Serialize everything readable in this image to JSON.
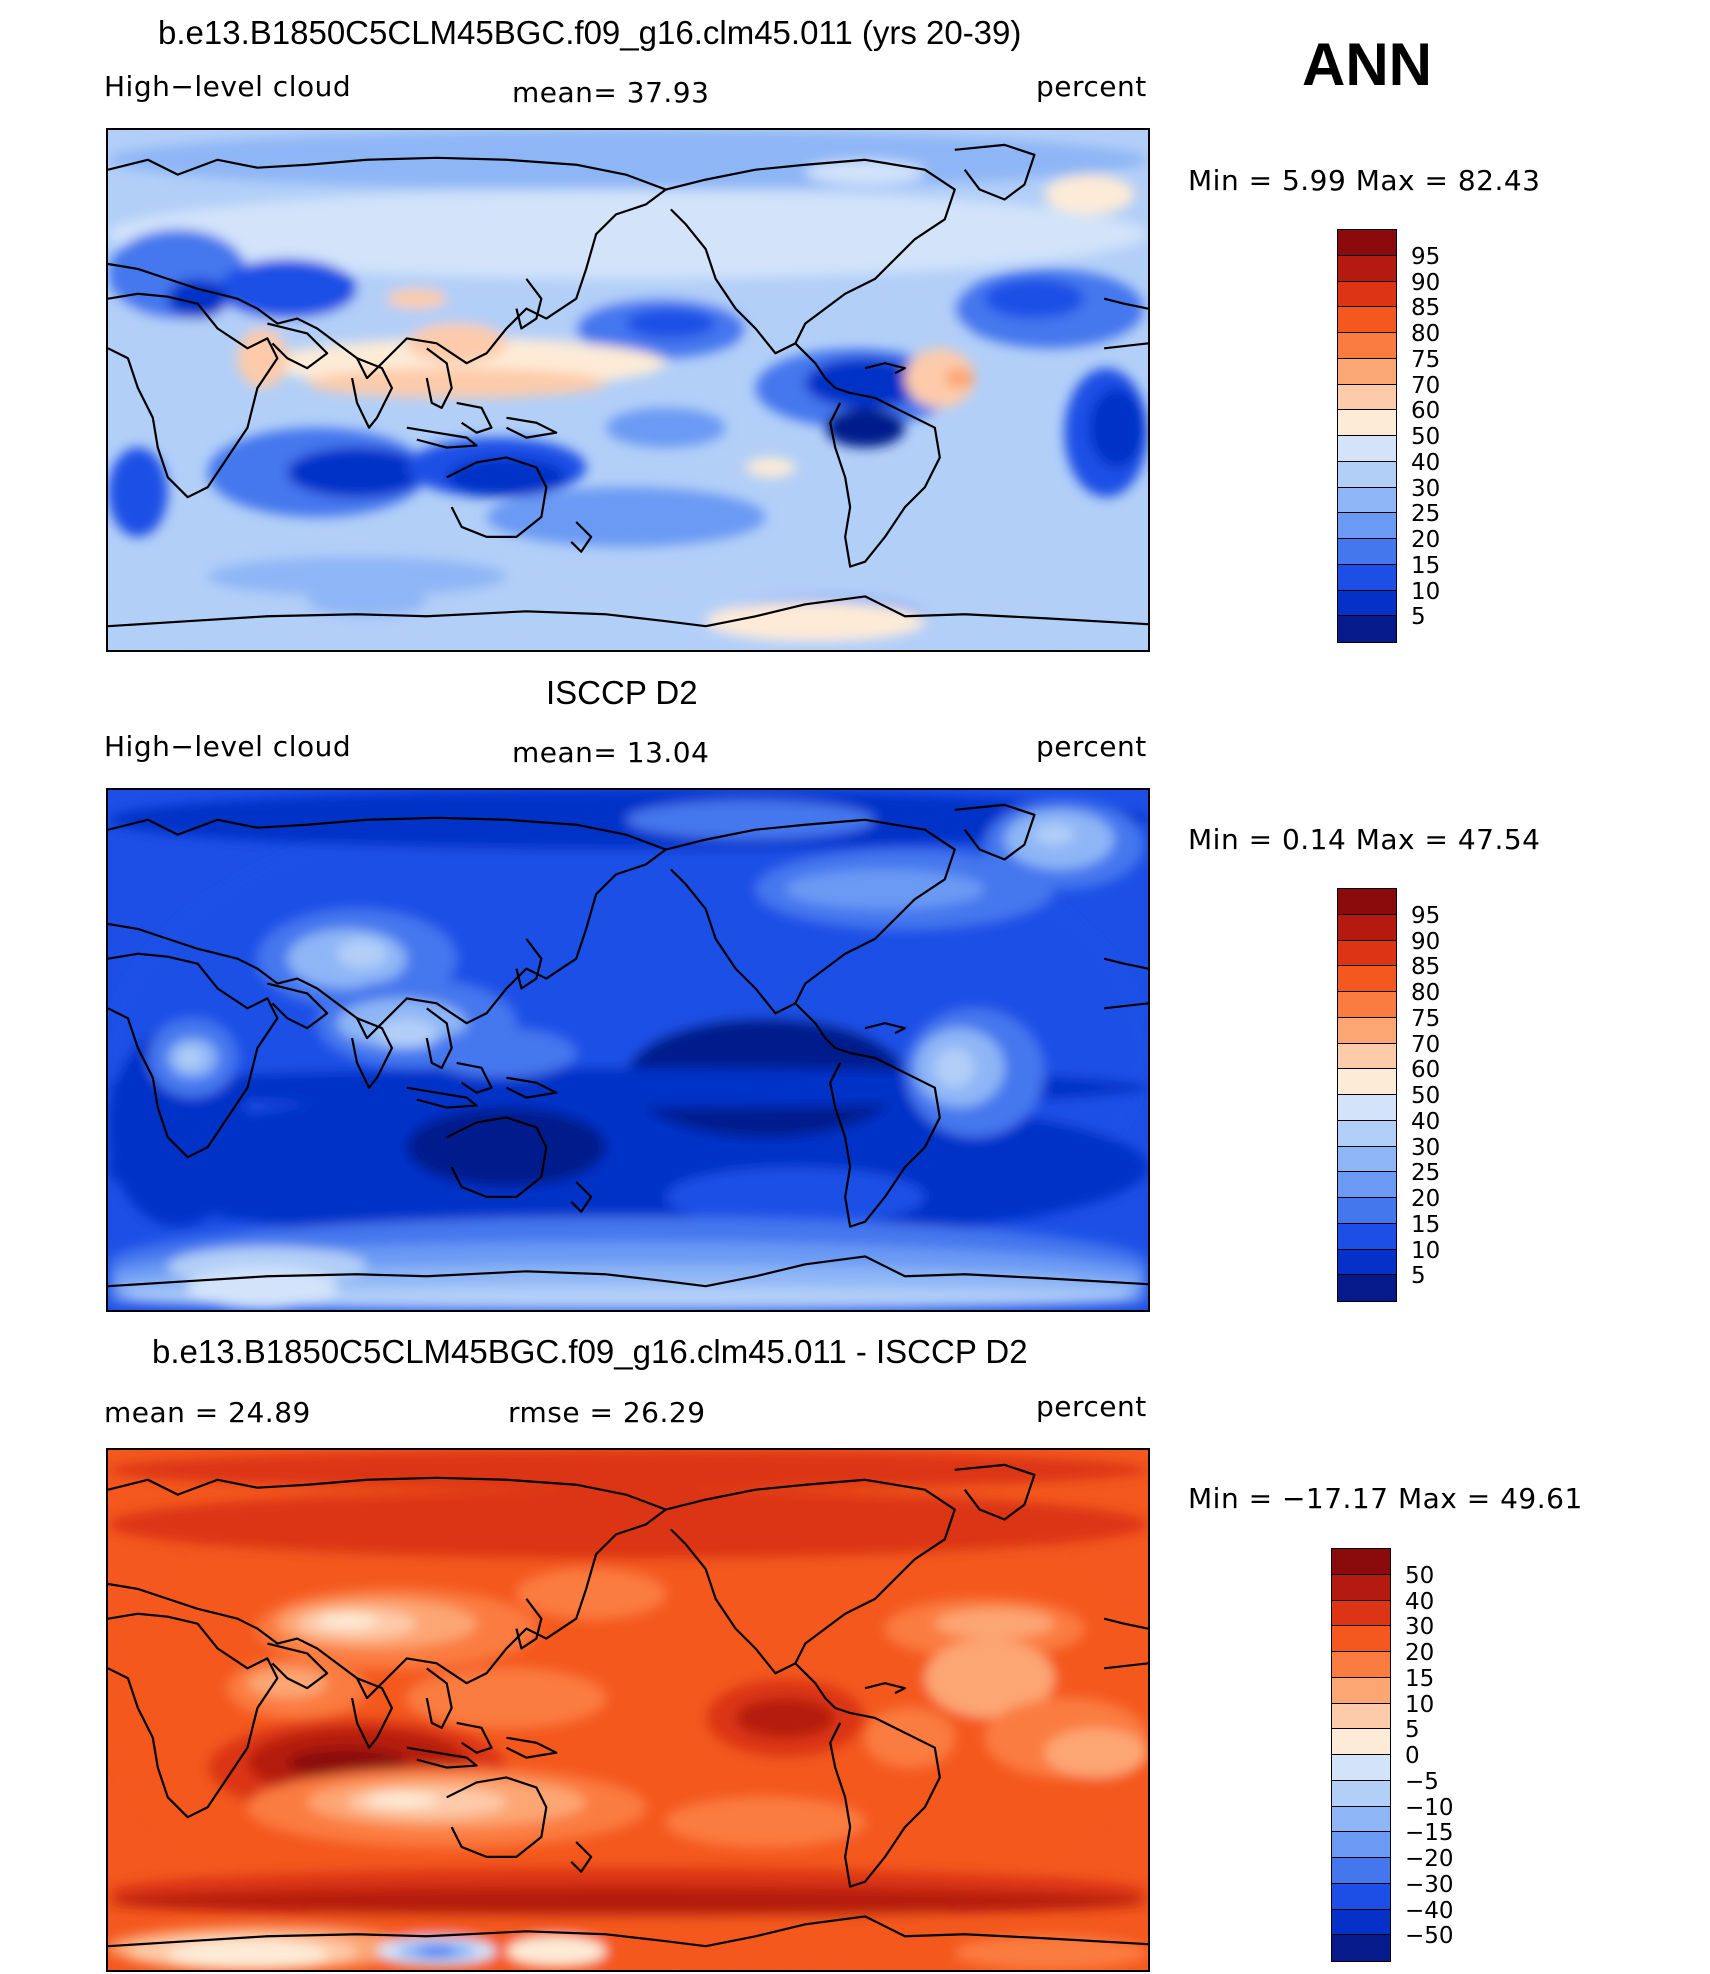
{
  "season": "ANN",
  "panels": [
    {
      "id": "model",
      "title": "b.e13.B1850C5CLM45BGC.f09_g16.clm45.011 (yrs 20-39)",
      "left_label": "High−level cloud",
      "center_label": "mean=   37.93",
      "right_label": "percent",
      "min_max": "Min =    5.99 Max =   82.43",
      "colorbar": {
        "labels": [
          "95",
          "90",
          "85",
          "80",
          "75",
          "70",
          "60",
          "50",
          "40",
          "30",
          "25",
          "20",
          "15",
          "10",
          "5"
        ],
        "colors": [
          "#8b0b0c",
          "#b51a10",
          "#dc3415",
          "#f4581e",
          "#fb7c40",
          "#fca673",
          "#fdcbaa",
          "#fdebd7",
          "#d2e3fa",
          "#b2cff8",
          "#8eb6f6",
          "#6a9af4",
          "#4477ee",
          "#1d4fe6",
          "#0631c8",
          "#061a8c"
        ]
      },
      "map_style": "model"
    },
    {
      "id": "obs",
      "title": "ISCCP D2",
      "left_label": "High−level cloud",
      "center_label": "mean=   13.04",
      "right_label": "percent",
      "min_max": "Min =    0.14 Max =   47.54",
      "colorbar": {
        "labels": [
          "95",
          "90",
          "85",
          "80",
          "75",
          "70",
          "60",
          "50",
          "40",
          "30",
          "25",
          "20",
          "15",
          "10",
          "5"
        ],
        "colors": [
          "#8b0b0c",
          "#b51a10",
          "#dc3415",
          "#f4581e",
          "#fb7c40",
          "#fca673",
          "#fdcbaa",
          "#fdebd7",
          "#d2e3fa",
          "#b2cff8",
          "#8eb6f6",
          "#6a9af4",
          "#4477ee",
          "#1d4fe6",
          "#0631c8",
          "#061a8c"
        ]
      },
      "map_style": "obs"
    },
    {
      "id": "diff",
      "title": "b.e13.B1850C5CLM45BGC.f09_g16.clm45.011 - ISCCP D2",
      "left_label": "mean =   24.89",
      "center_label": "rmse =   26.29",
      "right_label": "percent",
      "min_max": "Min = −17.17 Max =   49.61",
      "colorbar": {
        "labels": [
          "50",
          "40",
          "30",
          "20",
          "15",
          "10",
          "5",
          "0",
          "−5",
          "−10",
          "−15",
          "−20",
          "−30",
          "−40",
          "−50"
        ],
        "colors": [
          "#8b0b0c",
          "#b51a10",
          "#dc3415",
          "#f4581e",
          "#fb7c40",
          "#fca673",
          "#fdcbaa",
          "#fdebd7",
          "#d2e3fa",
          "#b2cff8",
          "#8eb6f6",
          "#6a9af4",
          "#4477ee",
          "#1d4fe6",
          "#0631c8",
          "#061a8c"
        ]
      },
      "map_style": "diff"
    }
  ]
}
